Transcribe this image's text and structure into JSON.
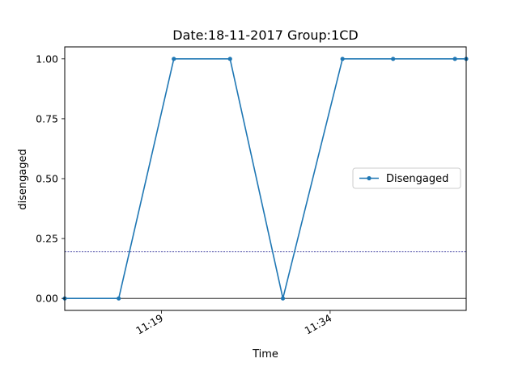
{
  "chart_data": {
    "type": "line",
    "title": "Date:18-11-2017  Group:1CD",
    "xlabel": "Time",
    "ylabel": "disengaged",
    "x_ticks": [
      {
        "label": "11:19",
        "value": 19
      },
      {
        "label": "11:34",
        "value": 34
      }
    ],
    "y_ticks": [
      "0.00",
      "0.25",
      "0.50",
      "0.75",
      "1.00"
    ],
    "xlim": [
      10.4,
      46.1
    ],
    "ylim": [
      -0.05,
      1.05
    ],
    "series": [
      {
        "name": "Disengaged",
        "color": "#1f77b4",
        "points": [
          {
            "x": 10.4,
            "y": 0
          },
          {
            "x": 15.2,
            "y": 0
          },
          {
            "x": 20.1,
            "y": 1
          },
          {
            "x": 25.1,
            "y": 1
          },
          {
            "x": 29.8,
            "y": 0
          },
          {
            "x": 35.1,
            "y": 1
          },
          {
            "x": 39.6,
            "y": 1
          },
          {
            "x": 45.1,
            "y": 1
          },
          {
            "x": 46.1,
            "y": 1
          }
        ]
      }
    ],
    "reference_lines": [
      {
        "y": 0.195,
        "style": "dashed",
        "color": "#000080"
      },
      {
        "y": 0.0,
        "style": "solid",
        "color": "#000000"
      }
    ],
    "legend_position": "center-right",
    "grid": false
  }
}
